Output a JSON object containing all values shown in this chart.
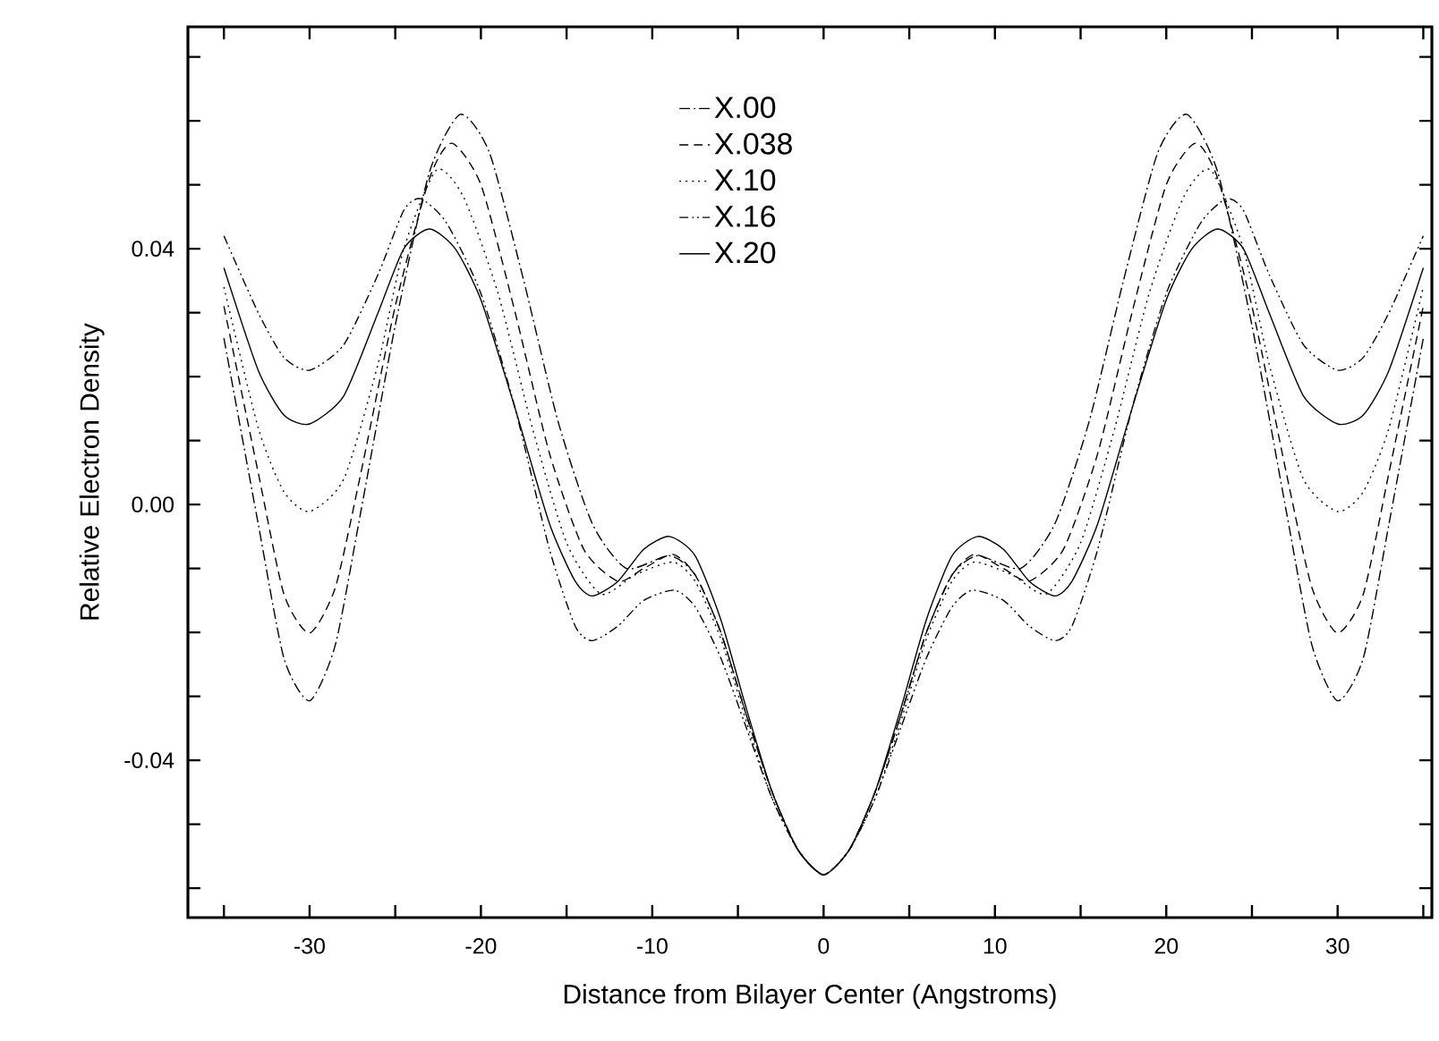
{
  "chart_data": {
    "type": "line",
    "xlabel": "Distance from Bilayer Center (Angstroms)",
    "ylabel": "Relative Electron Density",
    "xlim": [
      -37.1,
      35.5
    ],
    "ylim": [
      -0.0646,
      0.0747
    ],
    "xticks": [
      {
        "value": -35,
        "label": null
      },
      -30,
      {
        "value": -25,
        "label": null
      },
      -20,
      {
        "value": -15,
        "label": null
      },
      -10,
      {
        "value": -5,
        "label": null
      },
      0,
      {
        "value": 5,
        "label": null
      },
      10,
      {
        "value": 15,
        "label": null
      },
      20,
      {
        "value": 25,
        "label": null
      },
      30,
      {
        "value": 35,
        "label": null
      }
    ],
    "yticks": [
      {
        "value": -0.06,
        "label": null
      },
      {
        "value": -0.05,
        "label": null
      },
      {
        "value": -0.04,
        "label": "-0.04"
      },
      {
        "value": -0.03,
        "label": null
      },
      {
        "value": -0.02,
        "label": null
      },
      {
        "value": -0.01,
        "label": null
      },
      {
        "value": 0,
        "label": "0.00"
      },
      {
        "value": 0.01,
        "label": null
      },
      {
        "value": 0.02,
        "label": null
      },
      {
        "value": 0.03,
        "label": null
      },
      {
        "value": 0.04,
        "label": "0.04"
      },
      {
        "value": 0.05,
        "label": null
      },
      {
        "value": 0.06,
        "label": null
      },
      {
        "value": 0.07,
        "label": null
      }
    ],
    "grid": false,
    "legend": "top",
    "marker": "none",
    "series": [
      {
        "name": "X.00",
        "color": "#000000",
        "line_style": "dashdot",
        "x": [
          -35,
          -33,
          -31.5,
          -30,
          -28.5,
          -27,
          -25,
          -23,
          -21.2,
          -19.5,
          -17.5,
          -15.5,
          -13.5,
          -11.5,
          -9,
          -7.5,
          -6,
          -4.5,
          -3,
          -1.5,
          0,
          1.5,
          3,
          4.5,
          6,
          7.5,
          9,
          11.5,
          13.5,
          15.5,
          17.5,
          19.5,
          21.2,
          23,
          25,
          27,
          28.5,
          30,
          31.5,
          33,
          35
        ],
        "values": [
          0.026,
          -0.003,
          -0.024,
          -0.0307,
          -0.022,
          -0.001,
          0.028,
          0.052,
          0.061,
          0.055,
          0.035,
          0.013,
          -0.003,
          -0.01,
          -0.008,
          -0.011,
          -0.02,
          -0.033,
          -0.045,
          -0.054,
          -0.0579,
          -0.054,
          -0.045,
          -0.033,
          -0.02,
          -0.011,
          -0.008,
          -0.01,
          -0.003,
          0.013,
          0.035,
          0.055,
          0.061,
          0.052,
          0.028,
          -0.001,
          -0.022,
          -0.0307,
          -0.024,
          -0.003,
          0.026
        ]
      },
      {
        "name": "X.038",
        "color": "#000000",
        "line_style": "dashed",
        "x": [
          -35,
          -33,
          -31.5,
          -30,
          -28.5,
          -27,
          -25,
          -23,
          -21.7,
          -20,
          -18,
          -16,
          -14,
          -12,
          -10.5,
          -8.8,
          -7.5,
          -6,
          -4.5,
          -3,
          -1.5,
          0,
          1.5,
          3,
          4.5,
          6,
          7.5,
          8.8,
          10.5,
          12,
          14,
          16,
          18,
          20,
          21.7,
          23,
          25,
          27,
          28.5,
          30,
          31.5,
          33,
          35
        ],
        "values": [
          0.031,
          0.005,
          -0.014,
          -0.0201,
          -0.013,
          0.005,
          0.031,
          0.051,
          0.0565,
          0.05,
          0.03,
          0.008,
          -0.007,
          -0.012,
          -0.01,
          -0.0078,
          -0.011,
          -0.02,
          -0.033,
          -0.045,
          -0.054,
          -0.0579,
          -0.054,
          -0.045,
          -0.033,
          -0.02,
          -0.011,
          -0.0078,
          -0.01,
          -0.012,
          -0.007,
          0.008,
          0.03,
          0.05,
          0.0565,
          0.051,
          0.031,
          0.005,
          -0.013,
          -0.0201,
          -0.014,
          0.005,
          0.031
        ]
      },
      {
        "name": "X.10",
        "color": "#000000",
        "line_style": "dotted",
        "x": [
          -35,
          -33,
          -31.5,
          -30,
          -28,
          -26,
          -24.5,
          -22.6,
          -21,
          -19,
          -17,
          -15,
          -13,
          -11,
          -8.8,
          -7.5,
          -6,
          -4.5,
          -3,
          -1.5,
          0,
          1.5,
          3,
          4.5,
          6,
          7.5,
          8.8,
          11,
          13,
          15,
          17,
          19,
          21,
          22.6,
          24.5,
          26,
          28,
          30,
          31.5,
          33,
          35
        ],
        "values": [
          0.034,
          0.012,
          0.002,
          -0.0011,
          0.004,
          0.022,
          0.04,
          0.0523,
          0.048,
          0.033,
          0.012,
          -0.006,
          -0.014,
          -0.011,
          -0.009,
          -0.012,
          -0.021,
          -0.034,
          -0.046,
          -0.054,
          -0.0579,
          -0.054,
          -0.046,
          -0.034,
          -0.021,
          -0.012,
          -0.009,
          -0.011,
          -0.014,
          -0.006,
          0.012,
          0.033,
          0.048,
          0.0523,
          0.04,
          0.022,
          0.004,
          -0.0011,
          0.002,
          0.012,
          0.034
        ]
      },
      {
        "name": "X.16",
        "color": "#000000",
        "line_style": "dashdotdot",
        "x": [
          -35,
          -33,
          -31.5,
          -30,
          -28,
          -26,
          -24.5,
          -23.5,
          -22,
          -20,
          -18,
          -16,
          -14.5,
          -13.5,
          -12,
          -10.5,
          -8.7,
          -7.5,
          -6,
          -4.5,
          -3,
          -1.5,
          0,
          1.5,
          3,
          4.5,
          6,
          7.5,
          8.7,
          10.5,
          12,
          13.5,
          14.5,
          16,
          18,
          20,
          22,
          23.5,
          24.5,
          26,
          28,
          30,
          31.5,
          33,
          35
        ],
        "values": [
          0.042,
          0.03,
          0.023,
          0.021,
          0.025,
          0.036,
          0.046,
          0.0478,
          0.044,
          0.033,
          0.015,
          -0.007,
          -0.019,
          -0.0213,
          -0.019,
          -0.015,
          -0.0134,
          -0.016,
          -0.024,
          -0.035,
          -0.046,
          -0.054,
          -0.0579,
          -0.054,
          -0.046,
          -0.035,
          -0.024,
          -0.016,
          -0.0134,
          -0.015,
          -0.019,
          -0.0213,
          -0.019,
          -0.007,
          0.015,
          0.033,
          0.044,
          0.0478,
          0.046,
          0.036,
          0.025,
          0.021,
          0.023,
          0.03,
          0.042
        ]
      },
      {
        "name": "X.20",
        "color": "#000000",
        "line_style": "solid",
        "x": [
          -35,
          -33,
          -31.5,
          -30,
          -28,
          -26,
          -24.5,
          -23,
          -21.5,
          -20,
          -18,
          -16,
          -14.5,
          -13.5,
          -12,
          -10.5,
          -9,
          -7.5,
          -6,
          -4.5,
          -3,
          -1.5,
          0,
          1.5,
          3,
          4.5,
          6,
          7.5,
          9,
          10.5,
          12,
          13.5,
          14.5,
          16,
          18,
          20,
          21.5,
          23,
          24.5,
          26,
          28,
          30,
          31.5,
          33,
          35
        ],
        "values": [
          0.037,
          0.021,
          0.014,
          0.0126,
          0.017,
          0.03,
          0.04,
          0.0431,
          0.04,
          0.032,
          0.015,
          -0.003,
          -0.012,
          -0.0143,
          -0.012,
          -0.007,
          -0.005,
          -0.008,
          -0.018,
          -0.032,
          -0.045,
          -0.054,
          -0.0579,
          -0.054,
          -0.045,
          -0.032,
          -0.018,
          -0.008,
          -0.005,
          -0.007,
          -0.012,
          -0.0143,
          -0.012,
          -0.003,
          0.015,
          0.032,
          0.04,
          0.0431,
          0.04,
          0.03,
          0.017,
          0.0126,
          0.014,
          0.021,
          0.037
        ]
      }
    ]
  }
}
